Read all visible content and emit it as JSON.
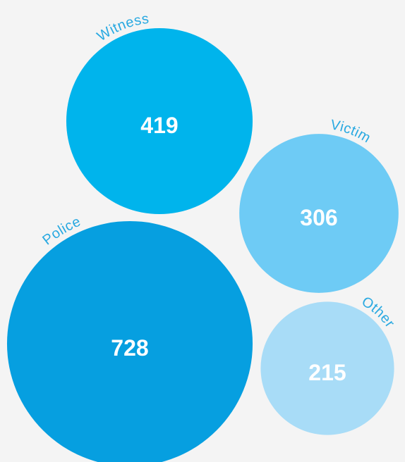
{
  "chart_data": {
    "type": "bubble",
    "categories": [
      "Witness",
      "Victim",
      "Police",
      "Other"
    ],
    "values": [
      419,
      306,
      728,
      215
    ],
    "colors": [
      "#00b4ec",
      "#6ecbf5",
      "#069fe0",
      "#a8dcf7"
    ]
  }
}
